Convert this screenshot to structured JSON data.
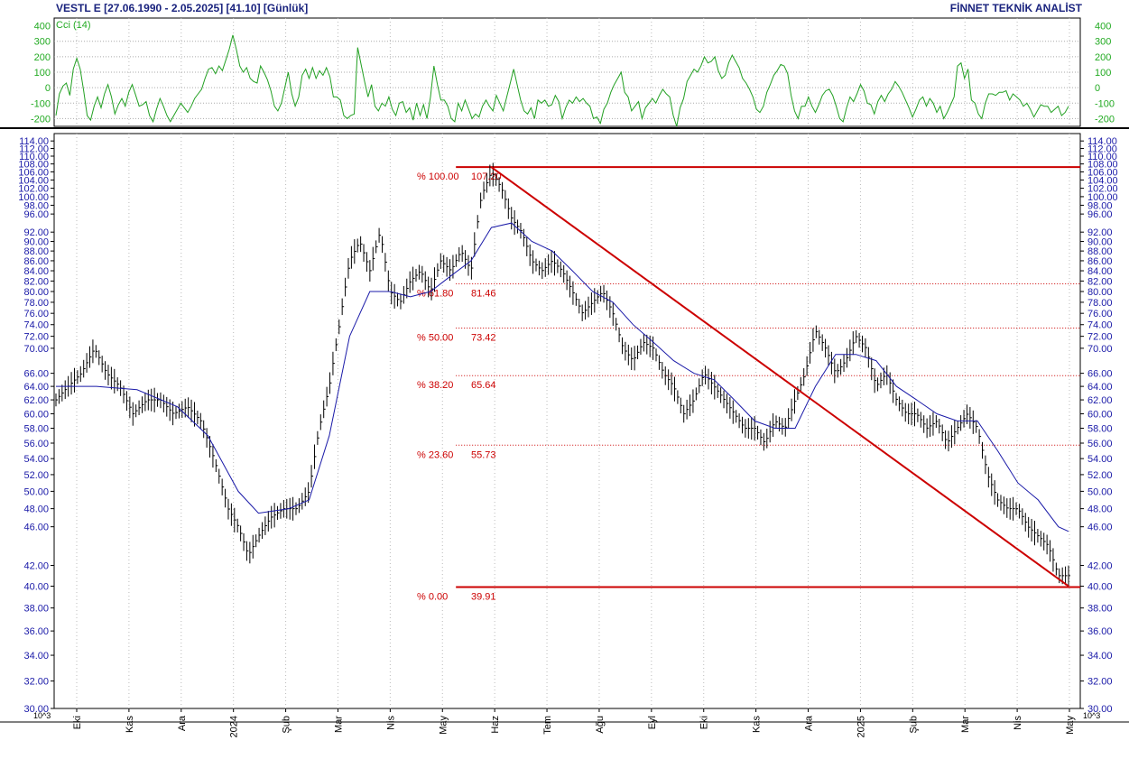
{
  "header": {
    "title": "VESTL E  [27.06.1990 - 2.05.2025]  [41.10]  [Günlük]",
    "brand": "FİNNET TEKNİK ANALİST"
  },
  "colors": {
    "price": "#000000",
    "moving_average": "#1a1aa8",
    "cci": "#22a022",
    "fib": "#cc0000",
    "axis_text_price": "#1a1aa8",
    "axis_text_cci": "#22aa22"
  },
  "chart_data": [
    {
      "type": "line",
      "title": "Cci (14)",
      "ylim": [
        -250,
        450
      ],
      "yticks": [
        400,
        300,
        200,
        100,
        0,
        -100,
        -200
      ],
      "ytick_labels": [
        "400",
        "300",
        "200",
        "100",
        "0",
        "-100",
        "-200"
      ],
      "series": [
        {
          "name": "Cci (14)",
          "x_range": [
            0,
            100
          ],
          "values": [
            -180,
            -40,
            10,
            30,
            -50,
            120,
            190,
            120,
            -20,
            -180,
            -210,
            -120,
            -60,
            -130,
            -40,
            20,
            -60,
            -170,
            -110,
            -70,
            -120,
            -30,
            20,
            -50,
            -120,
            -110,
            -90,
            -180,
            -220,
            -140,
            -70,
            -120,
            -180,
            -220,
            -180,
            -140,
            -100,
            -130,
            -160,
            -120,
            -70,
            -40,
            -10,
            60,
            120,
            130,
            90,
            140,
            110,
            180,
            250,
            340,
            250,
            140,
            100,
            130,
            60,
            40,
            30,
            140,
            100,
            50,
            -20,
            -120,
            -150,
            -100,
            0,
            100,
            -40,
            -120,
            -60,
            80,
            120,
            60,
            130,
            60,
            110,
            80,
            130,
            70,
            -60,
            -60,
            -80,
            -180,
            -200,
            -180,
            -170,
            260,
            150,
            40,
            -60,
            20,
            -120,
            -150,
            -100,
            -120,
            -60,
            -140,
            -180,
            -100,
            -90,
            -160,
            -130,
            -210,
            -100,
            -180,
            -110,
            -200,
            -60,
            140,
            20,
            -80,
            -80,
            -120,
            -200,
            -220,
            -100,
            -150,
            -80,
            -140,
            -200,
            -170,
            -190,
            -120,
            -80,
            -120,
            -150,
            -50,
            -100,
            -150,
            -60,
            30,
            120,
            20,
            -80,
            -150,
            -170,
            -130,
            -200,
            -80,
            -100,
            -80,
            -120,
            -110,
            -50,
            -90,
            -200,
            -130,
            -80,
            -100,
            -60,
            -90,
            -70,
            -100,
            -120,
            -200,
            -190,
            -230,
            -140,
            -100,
            -30,
            20,
            60,
            100,
            -30,
            -60,
            -150,
            -120,
            -90,
            -200,
            -130,
            -100,
            -70,
            -100,
            -50,
            -10,
            -40,
            -60,
            -180,
            -250,
            -130,
            -70,
            40,
            80,
            120,
            100,
            140,
            200,
            160,
            170,
            200,
            110,
            60,
            80,
            160,
            210,
            170,
            130,
            60,
            30,
            -10,
            -60,
            -140,
            -160,
            -120,
            -30,
            20,
            80,
            110,
            150,
            140,
            90,
            -50,
            -150,
            -200,
            -120,
            -120,
            -60,
            -120,
            -160,
            -110,
            -50,
            -20,
            -10,
            -50,
            -120,
            -200,
            -220,
            -130,
            -60,
            -90,
            -40,
            20,
            -20,
            -100,
            -110,
            -170,
            -90,
            -50,
            -90,
            -40,
            -10,
            40,
            10,
            -30,
            -80,
            -130,
            -190,
            -140,
            -80,
            -60,
            -120,
            -70,
            -100,
            -160,
            -120,
            -200,
            -160,
            -110,
            -60,
            140,
            160,
            60,
            120,
            -80,
            -100,
            -170,
            -200,
            -100,
            -40,
            -40,
            -50,
            -30,
            -30,
            -20,
            -80,
            -40,
            -60,
            -80,
            -120,
            -100,
            -140,
            -190,
            -150,
            -110,
            -120,
            -120,
            -160,
            -140,
            -120,
            -180,
            -160,
            -120
          ]
        }
      ]
    },
    {
      "type": "line",
      "ylim": [
        30,
        116
      ],
      "yscale": "log",
      "yticks": [
        114,
        112,
        110,
        108,
        106,
        104,
        102,
        100,
        98,
        96,
        92,
        90,
        88,
        86,
        84,
        82,
        80,
        78,
        76,
        74,
        72,
        70,
        66,
        64,
        62,
        60,
        58,
        56,
        54,
        52,
        50,
        48,
        46,
        42,
        40,
        38,
        36,
        34,
        32,
        30
      ],
      "ytick_labels": [
        "114.00",
        "112.00",
        "110.00",
        "108.00",
        "106.00",
        "104.00",
        "102.00",
        "100.00",
        "98.00",
        "96.00",
        "92.00",
        "90.00",
        "88.00",
        "86.00",
        "84.00",
        "82.00",
        "80.00",
        "78.00",
        "76.00",
        "74.00",
        "72.00",
        "70.00",
        "66.00",
        "64.00",
        "62.00",
        "60.00",
        "58.00",
        "56.00",
        "54.00",
        "52.00",
        "50.00",
        "48.00",
        "46.00",
        "42.00",
        "40.00",
        "38.00",
        "36.00",
        "34.00",
        "32.00",
        "30.00"
      ],
      "scale_label": "10^3",
      "x_labels": [
        "Eki",
        "Kas",
        "Ara",
        "2024",
        "Şub",
        "Mar",
        "Nis",
        "May",
        "Haz",
        "Tem",
        "Ağu",
        "Eyl",
        "Eki",
        "Kas",
        "Ara",
        "2025",
        "Şub",
        "Mar",
        "Nis",
        "May"
      ],
      "series": [
        {
          "name": "price",
          "style": "hlc_bars",
          "points": [
            [
              0,
              62
            ],
            [
              1.2,
              64
            ],
            [
              2.5,
              66
            ],
            [
              3.8,
              70
            ],
            [
              5,
              66
            ],
            [
              6.3,
              64
            ],
            [
              7.6,
              60
            ],
            [
              9,
              62
            ],
            [
              10.3,
              62
            ],
            [
              11.6,
              60
            ],
            [
              13,
              61
            ],
            [
              14.3,
              59
            ],
            [
              15.6,
              54
            ],
            [
              17,
              48
            ],
            [
              18,
              46
            ],
            [
              19,
              43
            ],
            [
              20,
              45
            ],
            [
              21.2,
              47
            ],
            [
              22.5,
              48
            ],
            [
              23.8,
              48
            ],
            [
              25,
              50
            ],
            [
              26,
              58
            ],
            [
              27,
              64
            ],
            [
              28,
              74
            ],
            [
              29,
              86
            ],
            [
              30,
              90
            ],
            [
              31,
              84
            ],
            [
              32,
              92
            ],
            [
              33,
              80
            ],
            [
              34,
              78
            ],
            [
              35,
              82
            ],
            [
              36,
              84
            ],
            [
              37,
              80
            ],
            [
              38,
              86
            ],
            [
              39,
              84
            ],
            [
              40,
              88
            ],
            [
              41,
              84
            ],
            [
              42,
              100
            ],
            [
              43,
              106
            ],
            [
              44,
              102
            ],
            [
              45,
              95
            ],
            [
              46,
              92
            ],
            [
              47,
              86
            ],
            [
              48,
              84
            ],
            [
              49,
              86
            ],
            [
              50,
              84
            ],
            [
              51,
              80
            ],
            [
              52,
              76
            ],
            [
              53,
              78
            ],
            [
              54,
              80
            ],
            [
              55,
              76
            ],
            [
              56,
              70
            ],
            [
              57,
              68
            ],
            [
              58,
              71
            ],
            [
              59,
              70
            ],
            [
              60,
              66
            ],
            [
              61,
              64
            ],
            [
              62,
              60
            ],
            [
              63,
              62
            ],
            [
              64,
              66
            ],
            [
              65,
              64
            ],
            [
              66,
              62
            ],
            [
              67,
              60
            ],
            [
              68,
              58
            ],
            [
              69,
              58
            ],
            [
              70,
              56
            ],
            [
              71,
              59
            ],
            [
              72,
              58
            ],
            [
              73,
              62
            ],
            [
              74,
              66
            ],
            [
              75,
              73
            ],
            [
              76,
              70
            ],
            [
              77,
              66
            ],
            [
              78,
              68
            ],
            [
              79,
              72
            ],
            [
              80,
              70
            ],
            [
              81,
              64
            ],
            [
              82,
              66
            ],
            [
              83,
              62
            ],
            [
              84,
              60
            ],
            [
              85,
              60
            ],
            [
              86,
              58
            ],
            [
              87,
              59
            ],
            [
              88,
              56
            ],
            [
              89,
              58
            ],
            [
              90,
              60
            ],
            [
              91,
              58
            ],
            [
              92,
              52
            ],
            [
              93,
              49
            ],
            [
              94,
              48
            ],
            [
              95,
              48
            ],
            [
              96,
              46
            ],
            [
              97,
              45
            ],
            [
              98,
              44
            ],
            [
              99,
              41
            ],
            [
              100,
              41
            ]
          ]
        },
        {
          "name": "moving_average",
          "points": [
            [
              0,
              64
            ],
            [
              4,
              64
            ],
            [
              8,
              63.5
            ],
            [
              12,
              61
            ],
            [
              15,
              57
            ],
            [
              18,
              50
            ],
            [
              20,
              47.5
            ],
            [
              23,
              48
            ],
            [
              25,
              49
            ],
            [
              27,
              57
            ],
            [
              29,
              72
            ],
            [
              31,
              80
            ],
            [
              33,
              80
            ],
            [
              35,
              79
            ],
            [
              37,
              80
            ],
            [
              39,
              83
            ],
            [
              41,
              86
            ],
            [
              43,
              93
            ],
            [
              45,
              94
            ],
            [
              47,
              90
            ],
            [
              49,
              88
            ],
            [
              51,
              84
            ],
            [
              53,
              80
            ],
            [
              55,
              78
            ],
            [
              57,
              74
            ],
            [
              59,
              71
            ],
            [
              61,
              68
            ],
            [
              63,
              66
            ],
            [
              65,
              65
            ],
            [
              67,
              62
            ],
            [
              69,
              59
            ],
            [
              71,
              58
            ],
            [
              73,
              58
            ],
            [
              75,
              64
            ],
            [
              77,
              69
            ],
            [
              79,
              69
            ],
            [
              81,
              68
            ],
            [
              83,
              64
            ],
            [
              85,
              62
            ],
            [
              87,
              60
            ],
            [
              89,
              59
            ],
            [
              91,
              59
            ],
            [
              93,
              55
            ],
            [
              95,
              51
            ],
            [
              97,
              49
            ],
            [
              99,
              46
            ],
            [
              100,
              45.5
            ]
          ]
        },
        {
          "name": "trend_line",
          "points": [
            [
              43,
              107.2
            ],
            [
              100,
              40
            ]
          ]
        }
      ],
      "fibonacci": {
        "x_start": 39.5,
        "levels": [
          {
            "pct_label": "% 100.00",
            "value": 107.2,
            "value_label": "107.20",
            "line": "solid"
          },
          {
            "pct_label": "% 61.80",
            "value": 81.46,
            "value_label": "81.46",
            "line": "dotted"
          },
          {
            "pct_label": "% 50.00",
            "value": 73.42,
            "value_label": "73.42",
            "line": "dotted"
          },
          {
            "pct_label": "% 38.20",
            "value": 65.64,
            "value_label": "65.64",
            "line": "dotted"
          },
          {
            "pct_label": "% 23.60",
            "value": 55.73,
            "value_label": "55.73",
            "line": "dotted"
          },
          {
            "pct_label": "% 0.00",
            "value": 39.91,
            "value_label": "39.91",
            "line": "solid"
          }
        ]
      }
    }
  ]
}
